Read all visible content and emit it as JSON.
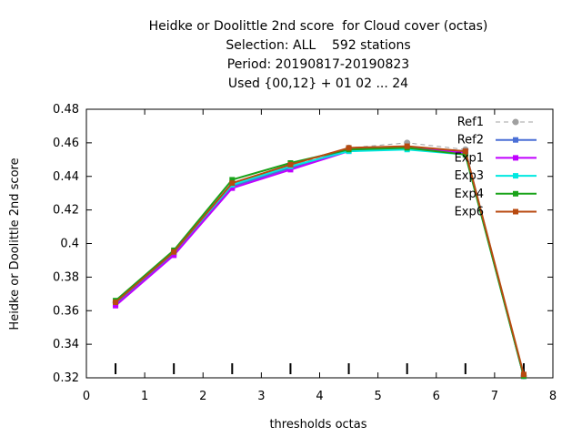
{
  "chart_data": {
    "type": "line",
    "title_lines": [
      "Heidke or Doolittle 2nd score  for Cloud cover (octas)",
      "Selection: ALL    592 stations",
      "Period: 20190817-20190823",
      "Used {00,12} + 01 02 ... 24"
    ],
    "xlabel": "thresholds octas",
    "ylabel": "Heidke or Doolittle 2nd score",
    "xlim": [
      0,
      8
    ],
    "ylim": [
      0.32,
      0.48
    ],
    "x_ticks": [
      "0",
      "1",
      "2",
      "3",
      "4",
      "5",
      "6",
      "7",
      "8"
    ],
    "y_ticks": [
      "0.32",
      "0.34",
      "0.36",
      "0.38",
      "0.4",
      "0.42",
      "0.44",
      "0.46",
      "0.48"
    ],
    "x": [
      0.5,
      1.5,
      2.5,
      3.5,
      4.5,
      5.5,
      6.5,
      7.5
    ],
    "legend_position": "top-right",
    "series": [
      {
        "name": "Ref1",
        "color": "#a0a0a0",
        "dashed": true,
        "marker": "circle",
        "values": [
          0.365,
          0.395,
          0.435,
          0.446,
          0.457,
          0.46,
          0.456,
          0.321
        ]
      },
      {
        "name": "Ref2",
        "color": "#4a6fd6",
        "dashed": false,
        "marker": "square",
        "values": [
          0.364,
          0.394,
          0.434,
          0.445,
          0.456,
          0.457,
          0.455,
          0.321
        ]
      },
      {
        "name": "Exp1",
        "color": "#c000ff",
        "dashed": false,
        "marker": "square",
        "values": [
          0.363,
          0.393,
          0.433,
          0.444,
          0.455,
          0.457,
          0.454,
          0.321
        ]
      },
      {
        "name": "Exp3",
        "color": "#00e8e0",
        "dashed": false,
        "marker": "square",
        "values": [
          0.365,
          0.395,
          0.435,
          0.446,
          0.455,
          0.456,
          0.453,
          0.321
        ]
      },
      {
        "name": "Exp4",
        "color": "#1aa31a",
        "dashed": false,
        "marker": "square",
        "values": [
          0.366,
          0.396,
          0.438,
          0.448,
          0.456,
          0.457,
          0.453,
          0.321
        ]
      },
      {
        "name": "Exp6",
        "color": "#b84a10",
        "dashed": false,
        "marker": "square",
        "values": [
          0.365,
          0.395,
          0.436,
          0.447,
          0.457,
          0.458,
          0.455,
          0.322
        ]
      }
    ]
  }
}
